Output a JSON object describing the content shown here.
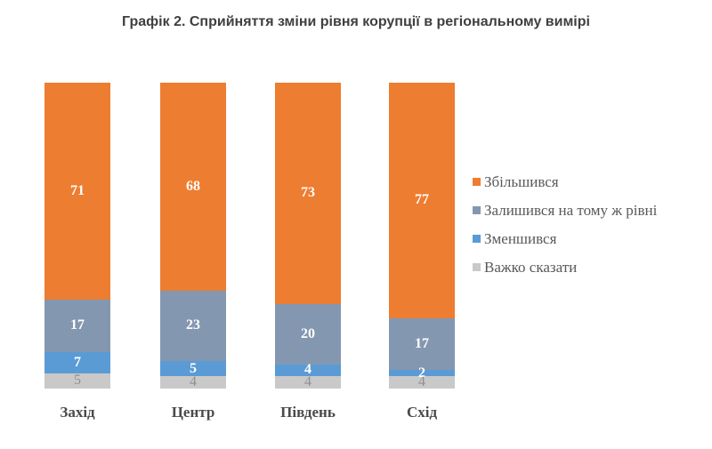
{
  "title": "Графік 2. Сприйняття зміни рівня корупції в регіональному вимірі",
  "chart_data": {
    "type": "bar",
    "stacked": true,
    "orientation": "vertical",
    "categories": [
      "Захід",
      "Центр",
      "Південь",
      "Схід"
    ],
    "series": [
      {
        "name": "Збільшився",
        "color": "#ED7D31",
        "label_color": "#ffffff",
        "values": [
          71,
          68,
          73,
          77
        ]
      },
      {
        "name": "Залишився на тому ж рівні",
        "color": "#8497B0",
        "label_color": "#ffffff",
        "values": [
          17,
          23,
          20,
          17
        ]
      },
      {
        "name": "Зменшився",
        "color": "#5B9BD5",
        "label_color": "#ffffff",
        "values": [
          7,
          5,
          4,
          2
        ]
      },
      {
        "name": "Важко сказати",
        "color": "#C9C9C9",
        "label_color": "#8f8f8f",
        "values": [
          5,
          4,
          4,
          4
        ]
      }
    ],
    "ylim": [
      0,
      100
    ],
    "grid": false,
    "legend_position": "right",
    "value_labels": "inside"
  }
}
